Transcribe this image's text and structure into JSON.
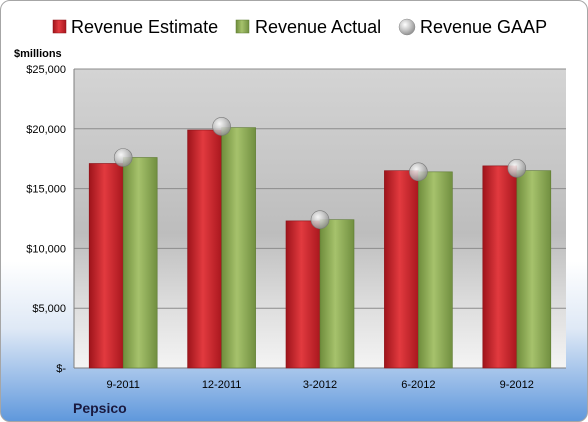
{
  "chart_data": {
    "type": "bar",
    "title": "",
    "unit_label": "$millions",
    "company": "Pepsico",
    "categories": [
      "9-2011",
      "12-2011",
      "3-2012",
      "6-2012",
      "9-2012"
    ],
    "series": [
      {
        "name": "Revenue Estimate",
        "kind": "bar",
        "color": "#c8232a",
        "values": [
          17100,
          19900,
          12300,
          16500,
          16900
        ]
      },
      {
        "name": "Revenue Actual",
        "kind": "bar",
        "color": "#8fae5a",
        "values": [
          17600,
          20100,
          12400,
          16400,
          16500
        ]
      },
      {
        "name": "Revenue GAAP",
        "kind": "marker",
        "color": "#b8b8b8",
        "values": [
          17600,
          20200,
          12400,
          16400,
          16700
        ]
      }
    ],
    "ylim": [
      0,
      25000
    ],
    "yticks": [
      0,
      5000,
      10000,
      15000,
      20000,
      25000
    ],
    "ytick_labels": [
      "$-",
      "$5,000",
      "$10,000",
      "$15,000",
      "$20,000",
      "$25,000"
    ],
    "grid": true,
    "legend_position": "top"
  }
}
